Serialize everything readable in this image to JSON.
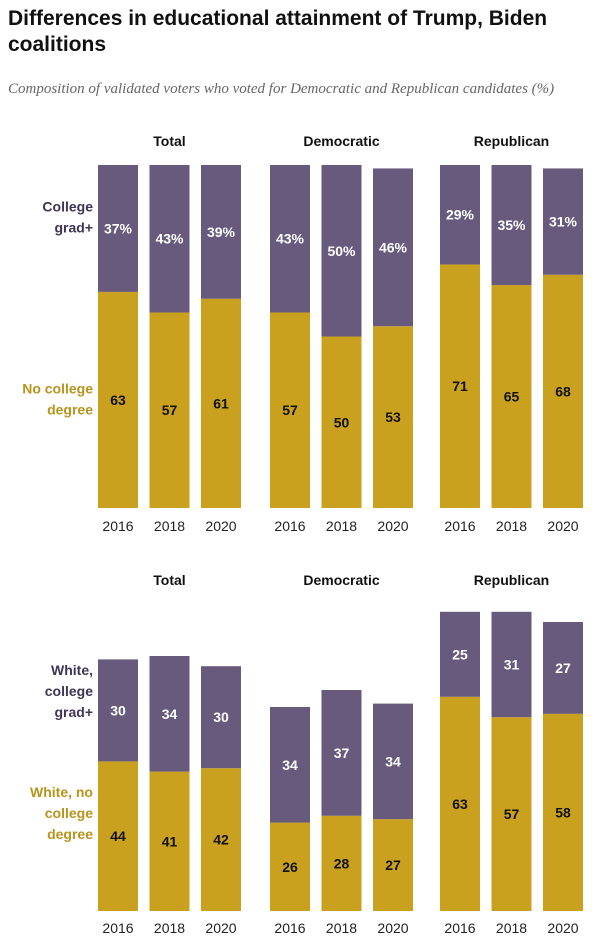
{
  "title": "Differences in educational attainment of Trump, Biden coalitions",
  "subtitle": "Composition of validated voters who voted for Democratic and Republican candidates (%)",
  "colors": {
    "top": "#685a7d",
    "bottom": "#c9a11f",
    "bottom_label": "#b8941c",
    "top_label": "#3f3557"
  },
  "chart_data": [
    {
      "type": "bar",
      "stacked": true,
      "scale_max": 100,
      "categories": [
        "2016",
        "2018",
        "2020"
      ],
      "panels": [
        {
          "title": "Total",
          "bottom": [
            63,
            57,
            61
          ],
          "top": [
            37,
            43,
            39
          ]
        },
        {
          "title": "Democratic",
          "bottom": [
            57,
            50,
            53
          ],
          "top": [
            43,
            50,
            46
          ]
        },
        {
          "title": "Republican",
          "bottom": [
            71,
            65,
            68
          ],
          "top": [
            29,
            35,
            31
          ]
        }
      ],
      "series": [
        {
          "name": "College grad+",
          "values_key": "top",
          "label_suffix": "%"
        },
        {
          "name": "No college degree",
          "values_key": "bottom",
          "label_suffix": ""
        }
      ],
      "top_label_lines": [
        "College",
        "grad+"
      ],
      "bottom_label_lines": [
        "No college",
        "degree"
      ]
    },
    {
      "type": "bar",
      "stacked": true,
      "scale_max": 100,
      "categories": [
        "2016",
        "2018",
        "2020"
      ],
      "panels": [
        {
          "title": "Total",
          "bottom": [
            44,
            41,
            42
          ],
          "top": [
            30,
            34,
            30
          ]
        },
        {
          "title": "Democratic",
          "bottom": [
            26,
            28,
            27
          ],
          "top": [
            34,
            37,
            34
          ]
        },
        {
          "title": "Republican",
          "bottom": [
            63,
            57,
            58
          ],
          "top": [
            25,
            31,
            27
          ]
        }
      ],
      "series": [
        {
          "name": "White, college grad+",
          "values_key": "top",
          "label_suffix": ""
        },
        {
          "name": "White, no college degree",
          "values_key": "bottom",
          "label_suffix": ""
        }
      ],
      "top_label_lines": [
        "White,",
        "college",
        "grad+"
      ],
      "bottom_label_lines": [
        "White, no",
        "college",
        "degree"
      ]
    }
  ]
}
